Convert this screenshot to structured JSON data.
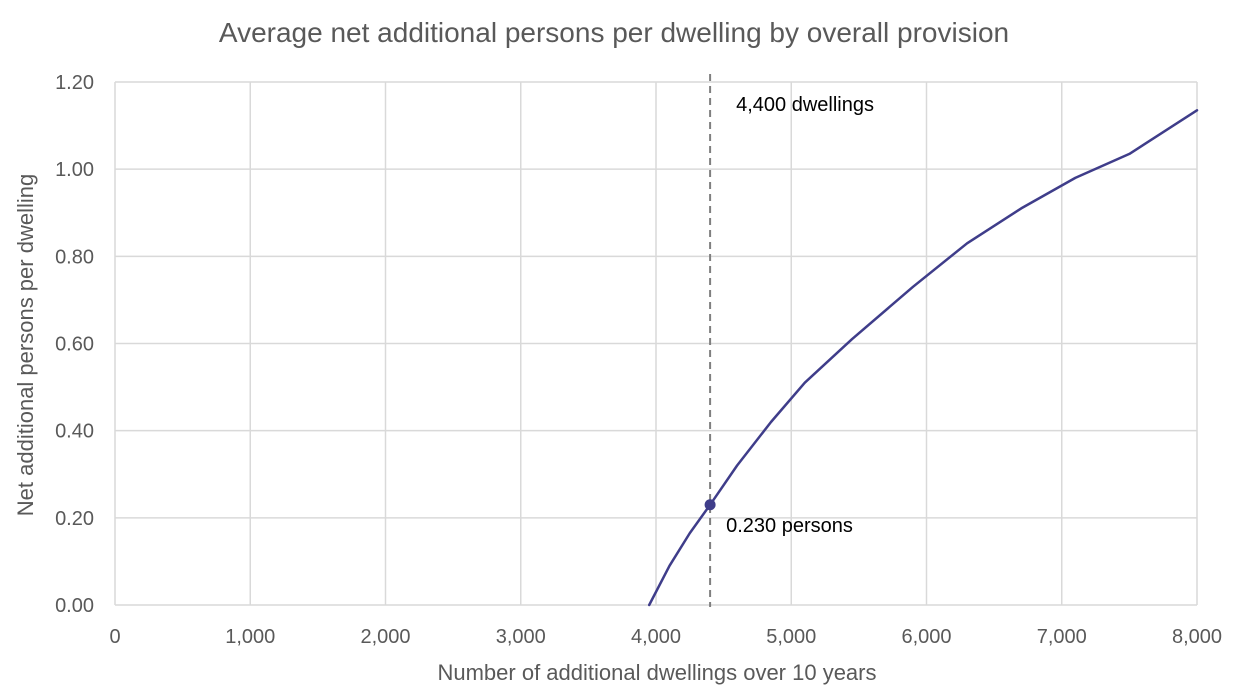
{
  "chart_data": {
    "type": "line",
    "title": "Average net additional persons per dwelling by overall provision",
    "xlabel": "Number of additional dwellings over 10 years",
    "ylabel": "Net additional persons per dwelling",
    "xlim": [
      0,
      8000
    ],
    "ylim": [
      0,
      1.2
    ],
    "x_ticks": [
      0,
      1000,
      2000,
      3000,
      4000,
      5000,
      6000,
      7000,
      8000
    ],
    "x_tick_labels": [
      "0",
      "1,000",
      "2,000",
      "3,000",
      "4,000",
      "5,000",
      "6,000",
      "7,000",
      "8,000"
    ],
    "y_ticks": [
      0,
      0.2,
      0.4,
      0.6,
      0.8,
      1.0,
      1.2
    ],
    "y_tick_labels": [
      "0.00",
      "0.20",
      "0.40",
      "0.60",
      "0.80",
      "1.00",
      "1.20"
    ],
    "grid": true,
    "legend": "none",
    "series": [
      {
        "color": "#3f3d8a",
        "points": [
          [
            3950,
            0.0
          ],
          [
            4100,
            0.09
          ],
          [
            4250,
            0.165
          ],
          [
            4400,
            0.23
          ],
          [
            4600,
            0.32
          ],
          [
            4850,
            0.42
          ],
          [
            5100,
            0.51
          ],
          [
            5450,
            0.61
          ],
          [
            5900,
            0.73
          ],
          [
            6300,
            0.83
          ],
          [
            6700,
            0.91
          ],
          [
            7100,
            0.98
          ],
          [
            7500,
            1.035
          ],
          [
            8000,
            1.135
          ]
        ]
      }
    ],
    "highlight_point": {
      "x": 4400,
      "y": 0.23,
      "label": "0.230 persons",
      "color": "#3f3d8a"
    },
    "reference_line": {
      "x": 4400,
      "label": "4,400 dwellings",
      "style": "dashed",
      "color": "#7f7f7f"
    }
  }
}
